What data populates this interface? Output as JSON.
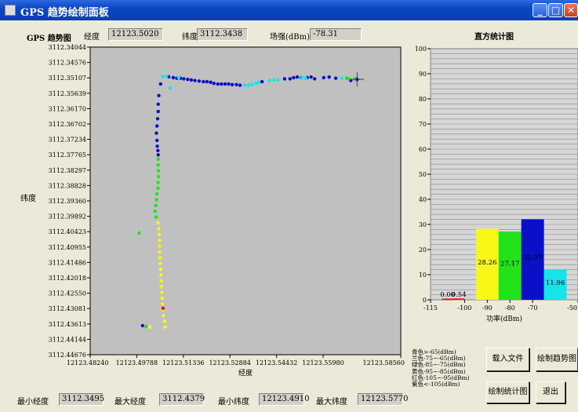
{
  "window": {
    "title": "GPS 趋势绘制面板",
    "minimize": "_",
    "maximize": "□",
    "close": "✕"
  },
  "readout": {
    "plot_label": "GPS 趋势图",
    "lon_label": "经度",
    "lon_value": "12123.5020",
    "lat_label": "纬度",
    "lat_value": "3112.3438",
    "strength_label": "场强(dBm)",
    "strength_value": "-78.31"
  },
  "scatter": {
    "xlabel": "经度",
    "ylabel": "纬度",
    "y_ticks": [
      "3112.44676",
      "3112.44144",
      "3112.43613",
      "3112.43081",
      "3112.42550",
      "3112.42018",
      "3112.41486",
      "3112.40955",
      "3112.40423",
      "3112.39892",
      "3112.39360",
      "3112.38828",
      "3112.38297",
      "3112.37765",
      "3112.37234",
      "3112.36702",
      "3112.36170",
      "3112.35639",
      "3112.35107",
      "3112.34576",
      "3112.34044"
    ],
    "x_ticks": [
      "12123.48240",
      "12123.49788",
      "12123.51336",
      "12123.52884",
      "12123.54432",
      "12123.55980",
      "12123.58560"
    ],
    "colors": {
      "blue": "#0a0fc8",
      "cyan": "#16e3ea",
      "green": "#22e21c",
      "yellow": "#f8f818",
      "red": "#ee1111",
      "bg": "#c0c0c0"
    }
  },
  "chart_data": {
    "type": "scatter",
    "xlabel": "经度",
    "ylabel": "纬度",
    "xlim": [
      12123.4824,
      12123.5856
    ],
    "ylim": [
      3112.34044,
      3112.44676
    ],
    "series": [
      {
        "color": "blue",
        "points": [
          [
            12123.5058,
            3112.434
          ],
          [
            12123.5085,
            3112.4365
          ],
          [
            12123.51,
            3112.4362
          ],
          [
            12123.5112,
            3112.436
          ],
          [
            12123.5124,
            3112.436
          ],
          [
            12123.5135,
            3112.4358
          ],
          [
            12123.5148,
            3112.4356
          ],
          [
            12123.516,
            3112.4354
          ],
          [
            12123.5172,
            3112.4352
          ],
          [
            12123.5186,
            3112.435
          ],
          [
            12123.52,
            3112.4348
          ],
          [
            12123.5212,
            3112.4348
          ],
          [
            12123.5224,
            3112.4346
          ],
          [
            12123.5235,
            3112.4342
          ],
          [
            12123.5248,
            3112.434
          ],
          [
            12123.526,
            3112.434
          ],
          [
            12123.5272,
            3112.434
          ],
          [
            12123.5284,
            3112.434
          ],
          [
            12123.5296,
            3112.4338
          ],
          [
            12123.531,
            3112.4338
          ],
          [
            12123.5322,
            3112.4336
          ],
          [
            12123.5395,
            3112.4348
          ],
          [
            12123.547,
            3112.4358
          ],
          [
            12123.5488,
            3112.4358
          ],
          [
            12123.55,
            3112.4362
          ],
          [
            12123.5512,
            3112.4364
          ],
          [
            12123.5526,
            3112.4362
          ],
          [
            12123.5545,
            3112.4362
          ],
          [
            12123.5558,
            3112.4364
          ],
          [
            12123.557,
            3112.4358
          ],
          [
            12123.56,
            3112.4362
          ],
          [
            12123.5618,
            3112.4364
          ],
          [
            12123.564,
            3112.436
          ],
          [
            12123.569,
            3112.4352
          ],
          [
            12123.5052,
            3112.43
          ],
          [
            12123.505,
            3112.427
          ],
          [
            12123.505,
            3112.4245
          ],
          [
            12123.5048,
            3112.422
          ],
          [
            12123.5046,
            3112.4195
          ],
          [
            12123.5044,
            3112.417
          ],
          [
            12123.5046,
            3112.4145
          ],
          [
            12123.5047,
            3112.4125
          ],
          [
            12123.5049,
            3112.411
          ],
          [
            12123.505,
            3112.4095
          ],
          [
            12123.4998,
            3112.3505
          ]
        ]
      },
      {
        "color": "cyan",
        "points": [
          [
            12123.5065,
            3112.4366
          ],
          [
            12123.5078,
            3112.4367
          ],
          [
            12123.5118,
            3112.4362
          ],
          [
            12123.5337,
            3112.4336
          ],
          [
            12123.535,
            3112.4336
          ],
          [
            12123.5362,
            3112.4338
          ],
          [
            12123.5375,
            3112.4342
          ],
          [
            12123.5384,
            3112.4346
          ],
          [
            12123.542,
            3112.4352
          ],
          [
            12123.5435,
            3112.4354
          ],
          [
            12123.5448,
            3112.4354
          ],
          [
            12123.5528,
            3112.4362
          ],
          [
            12123.554,
            3112.436
          ],
          [
            12123.566,
            3112.436
          ],
          [
            12123.509,
            3112.4326
          ]
        ]
      },
      {
        "color": "green",
        "points": [
          [
            12123.5676,
            3112.436
          ],
          [
            12123.5683,
            3112.4358
          ],
          [
            12123.5703,
            3112.4358
          ],
          [
            12123.505,
            3112.408
          ],
          [
            12123.505,
            3112.406
          ],
          [
            12123.5051,
            3112.404
          ],
          [
            12123.5051,
            3112.402
          ],
          [
            12123.505,
            3112.4
          ],
          [
            12123.5049,
            3112.398
          ],
          [
            12123.5046,
            3112.396
          ],
          [
            12123.5044,
            3112.394
          ],
          [
            12123.5042,
            3112.392
          ],
          [
            12123.504,
            3112.39
          ],
          [
            12123.5043,
            3112.388
          ],
          [
            12123.4987,
            3112.3825
          ],
          [
            12123.501,
            3112.3502
          ]
        ]
      },
      {
        "color": "yellow",
        "points": [
          [
            12123.505,
            3112.386
          ],
          [
            12123.5052,
            3112.384
          ],
          [
            12123.5053,
            3112.382
          ],
          [
            12123.5054,
            3112.38
          ],
          [
            12123.5054,
            3112.378
          ],
          [
            12123.5055,
            3112.376
          ],
          [
            12123.5056,
            3112.374
          ],
          [
            12123.5057,
            3112.372
          ],
          [
            12123.5058,
            3112.37
          ],
          [
            12123.5059,
            3112.368
          ],
          [
            12123.506,
            3112.366
          ],
          [
            12123.5061,
            3112.364
          ],
          [
            12123.5062,
            3112.362
          ],
          [
            12123.5063,
            3112.36
          ],
          [
            12123.5064,
            3112.358
          ],
          [
            12123.5066,
            3112.356
          ],
          [
            12123.5068,
            3112.354
          ],
          [
            12123.5071,
            3112.352
          ],
          [
            12123.5073,
            3112.35
          ],
          [
            12123.5022,
            3112.35
          ]
        ]
      },
      {
        "color": "red",
        "points": [
          [
            12123.5066,
            3112.3565
          ]
        ]
      }
    ],
    "marker": [
      12123.5711,
      3112.4356
    ]
  },
  "histogram": {
    "title": "直方统计图",
    "xlabel": "功率(dBm)",
    "xlim": [
      -115,
      -50
    ],
    "ylim": [
      0,
      100
    ],
    "x_ticks": [
      "-115",
      "-100",
      "-90",
      "-80",
      "-70",
      "-50"
    ],
    "y_ticks": [
      "0",
      "10",
      "20",
      "30",
      "40",
      "50",
      "60",
      "70",
      "80",
      "90",
      "100"
    ],
    "bars": [
      {
        "x0": -110,
        "x1": -105,
        "value": 0.0,
        "label": "0.00",
        "color": "#ee1111"
      },
      {
        "x0": -105,
        "x1": -100,
        "value": 0.54,
        "label": "0.54",
        "color": "#ee1111"
      },
      {
        "x0": -95,
        "x1": -85,
        "value": 28.26,
        "label": "28.26",
        "color": "#f8f818"
      },
      {
        "x0": -85,
        "x1": -75,
        "value": 27.17,
        "label": "27.17",
        "color": "#22e21c"
      },
      {
        "x0": -75,
        "x1": -65,
        "value": 32.07,
        "label": "32.07",
        "color": "#0a0fc8"
      },
      {
        "x0": -65,
        "x1": -55,
        "value": 11.96,
        "label": "11.96",
        "color": "#16e3ea"
      }
    ]
  },
  "legend": [
    "青色>-65(dBm)",
    "兰色-75~-65(dBm)",
    "绿色-85~-75(dBm)",
    "黄色-95~-85(dBm)",
    "红色-105~-95(dBm)",
    "紫色<-105(dBm)"
  ],
  "buttons": {
    "load": "载入文件",
    "draw_trend": "绘制趋势图",
    "draw_stats": "绘制统计图",
    "exit": "退出"
  },
  "bottom": {
    "min_lat_label": "最小经度",
    "min_lat_value": "3112.3495",
    "max_lat_label": "最大经度",
    "max_lat_value": "3112.4379",
    "min_lon_label": "最小纬度",
    "min_lon_value": "12123.4910",
    "max_lon_label": "最大纬度",
    "max_lon_value": "12123.5770"
  }
}
